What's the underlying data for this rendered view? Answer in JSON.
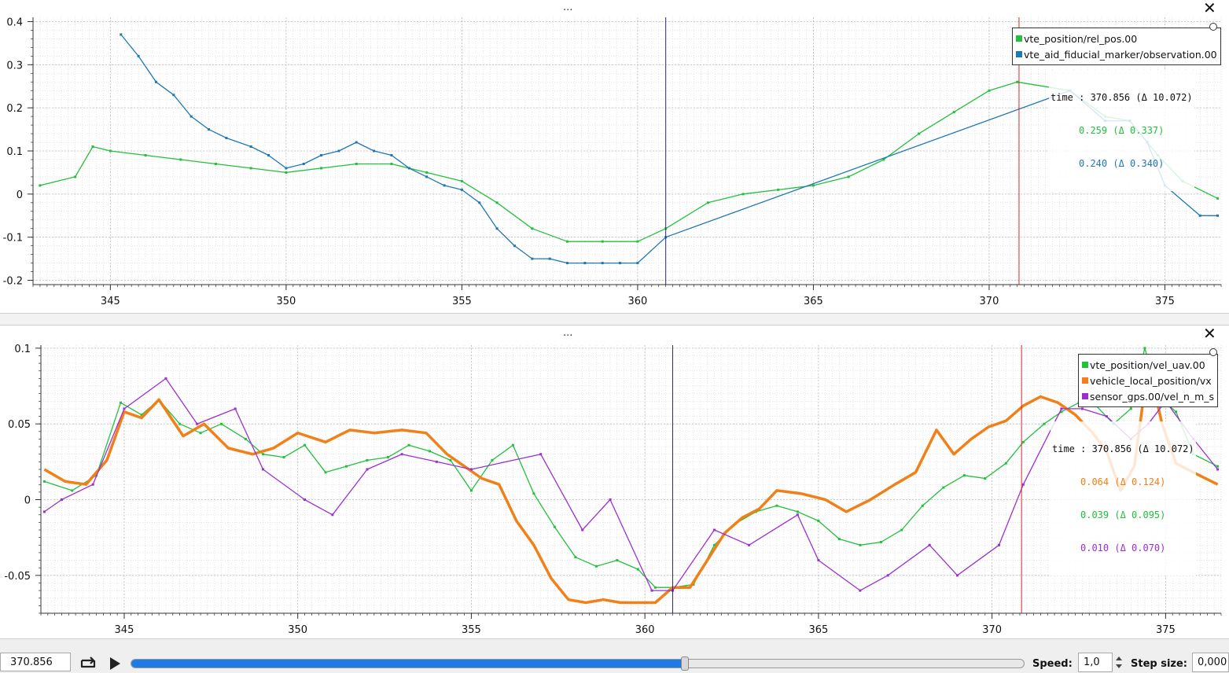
{
  "panels": [
    {
      "menu_dots": "...",
      "close_icon": "close-icon",
      "y_ticks": [
        "0.4",
        "0.3",
        "0.2",
        "0.1",
        "0",
        "-0.1",
        "-0.2"
      ],
      "x_ticks": [
        "345",
        "350",
        "355",
        "360",
        "365",
        "370",
        "375"
      ],
      "legend": [
        {
          "label": "vte_position/rel_pos.00",
          "color": "#22c03c"
        },
        {
          "label": "vte_aid_fiducial_marker/observation.00",
          "color": "#1f77b4"
        }
      ],
      "tooltip": {
        "time": "time : 370.856 (Δ 10.072)",
        "values": [
          {
            "text": "0.259 (Δ 0.337)",
            "color": "#22c03c"
          },
          {
            "text": "0.240 (Δ 0.340)",
            "color": "#1f77b4"
          }
        ]
      }
    },
    {
      "menu_dots": "...",
      "close_icon": "close-icon",
      "y_ticks": [
        "0.1",
        "0.05",
        "0",
        "-0.05"
      ],
      "x_ticks": [
        "345",
        "350",
        "355",
        "360",
        "365",
        "370",
        "375"
      ],
      "legend": [
        {
          "label": "vte_position/vel_uav.00",
          "color": "#22c03c"
        },
        {
          "label": "vehicle_local_position/vx",
          "color": "#f28018"
        },
        {
          "label": "sensor_gps.00/vel_n_m_s",
          "color": "#9c2fd0"
        }
      ],
      "tooltip": {
        "time": "time : 370.856 (Δ 10.072)",
        "values": [
          {
            "text": "0.064 (Δ 0.124)",
            "color": "#f28018"
          },
          {
            "text": "0.039 (Δ 0.095)",
            "color": "#22c03c"
          },
          {
            "text": "0.010 (Δ 0.070)",
            "color": "#9c2fd0"
          }
        ]
      }
    }
  ],
  "controls": {
    "time_value": "370.856",
    "loop_icon": "loop-icon",
    "play_icon": "play-icon",
    "progress": 0.62,
    "speed_label": "Speed:",
    "speed_value": "1,0",
    "step_label": "Step size:",
    "step_value": "0,000"
  },
  "chart_data": [
    {
      "type": "line",
      "xlim": [
        342.8,
        376.6
      ],
      "ylim": [
        -0.21,
        0.41
      ],
      "grid": true,
      "legend_position": "top-right",
      "cursor_x": [
        360.8,
        370.85
      ],
      "series": [
        {
          "name": "vte_position/rel_pos.00",
          "color": "#22c03c",
          "x": [
            343.0,
            344.0,
            344.5,
            345.0,
            346.0,
            347.0,
            348.0,
            349.0,
            350.0,
            351.0,
            352.0,
            353.0,
            354.0,
            355.0,
            356.0,
            357.0,
            358.0,
            359.0,
            360.0,
            360.8,
            362.0,
            363.0,
            364.0,
            365.0,
            366.0,
            367.0,
            368.0,
            369.0,
            370.0,
            370.8,
            372.3,
            373.3,
            374.0,
            374.8,
            375.5,
            376.5
          ],
          "y": [
            0.02,
            0.04,
            0.11,
            0.1,
            0.09,
            0.08,
            0.07,
            0.06,
            0.05,
            0.06,
            0.07,
            0.07,
            0.05,
            0.03,
            -0.02,
            -0.08,
            -0.11,
            -0.11,
            -0.11,
            -0.08,
            -0.02,
            0.0,
            0.01,
            0.02,
            0.04,
            0.08,
            0.14,
            0.19,
            0.24,
            0.26,
            0.24,
            0.18,
            0.17,
            0.09,
            0.03,
            -0.01
          ]
        },
        {
          "name": "vte_aid_fiducial_marker/observation.00",
          "color": "#1f77b4",
          "x": [
            345.3,
            345.8,
            346.3,
            346.8,
            347.3,
            347.8,
            348.3,
            349.0,
            349.5,
            350.0,
            350.5,
            351.0,
            351.5,
            352.0,
            352.5,
            353.0,
            353.5,
            354.0,
            354.5,
            355.0,
            355.5,
            356.0,
            356.5,
            357.0,
            357.5,
            358.0,
            358.5,
            359.0,
            359.5,
            360.0,
            360.8,
            372.3,
            373.3,
            374.0,
            374.5,
            375.0,
            376.0,
            376.5
          ],
          "y": [
            0.37,
            0.32,
            0.26,
            0.23,
            0.18,
            0.15,
            0.13,
            0.11,
            0.09,
            0.06,
            0.07,
            0.09,
            0.1,
            0.12,
            0.1,
            0.09,
            0.06,
            0.04,
            0.02,
            0.01,
            -0.02,
            -0.08,
            -0.12,
            -0.15,
            -0.15,
            -0.16,
            -0.16,
            -0.16,
            -0.16,
            -0.16,
            -0.1,
            0.24,
            0.17,
            0.17,
            0.12,
            0.02,
            -0.05,
            -0.05
          ]
        }
      ]
    },
    {
      "type": "line",
      "xlim": [
        342.6,
        376.6
      ],
      "ylim": [
        -0.075,
        0.102
      ],
      "grid": true,
      "legend_position": "top-right",
      "cursor_x": [
        360.8,
        370.85
      ],
      "series": [
        {
          "name": "vte_position/vel_uav.00",
          "color": "#22c03c",
          "x": [
            342.7,
            343.5,
            344.2,
            344.9,
            345.5,
            346.0,
            346.6,
            347.2,
            347.8,
            348.5,
            349.0,
            349.6,
            350.2,
            350.8,
            351.4,
            352.0,
            352.6,
            353.2,
            353.8,
            354.4,
            355.0,
            355.6,
            356.2,
            356.8,
            357.4,
            358.0,
            358.6,
            359.2,
            359.8,
            360.3,
            360.8,
            361.4,
            362.0,
            362.6,
            363.2,
            363.8,
            364.4,
            365.0,
            365.6,
            366.2,
            366.8,
            367.4,
            368.0,
            368.6,
            369.2,
            369.8,
            370.4,
            370.9,
            371.5,
            372.0,
            372.5,
            373.0,
            373.5,
            374.0,
            374.4,
            374.8,
            375.3,
            375.8,
            376.5
          ],
          "y": [
            0.012,
            0.006,
            0.016,
            0.064,
            0.056,
            0.066,
            0.05,
            0.044,
            0.05,
            0.04,
            0.03,
            0.028,
            0.036,
            0.018,
            0.022,
            0.026,
            0.028,
            0.036,
            0.032,
            0.026,
            0.006,
            0.026,
            0.036,
            0.004,
            -0.018,
            -0.038,
            -0.044,
            -0.04,
            -0.046,
            -0.058,
            -0.058,
            -0.056,
            -0.03,
            -0.016,
            -0.008,
            -0.004,
            -0.008,
            -0.014,
            -0.026,
            -0.03,
            -0.028,
            -0.02,
            -0.004,
            0.008,
            0.016,
            0.014,
            0.024,
            0.038,
            0.05,
            0.058,
            0.064,
            0.062,
            0.05,
            0.06,
            0.1,
            0.068,
            0.058,
            0.03,
            0.022
          ]
        },
        {
          "name": "vehicle_local_position/vx",
          "color": "#f28018",
          "x": [
            342.7,
            343.3,
            343.9,
            344.5,
            345.0,
            345.5,
            346.0,
            346.7,
            347.3,
            348.0,
            348.7,
            349.3,
            350.0,
            350.8,
            351.5,
            352.2,
            353.0,
            353.7,
            354.3,
            354.8,
            355.3,
            355.8,
            356.3,
            356.8,
            357.3,
            357.8,
            358.3,
            358.8,
            359.3,
            359.8,
            360.3,
            360.8,
            361.3,
            361.8,
            362.3,
            362.8,
            363.3,
            363.8,
            364.5,
            365.2,
            365.8,
            366.5,
            367.2,
            367.8,
            368.4,
            368.9,
            369.4,
            369.9,
            370.4,
            370.9,
            371.4,
            371.9,
            372.4,
            372.9,
            373.3,
            373.7,
            374.1,
            374.5,
            374.9,
            375.3,
            375.8,
            376.5
          ],
          "y": [
            0.02,
            0.012,
            0.01,
            0.026,
            0.058,
            0.054,
            0.066,
            0.042,
            0.05,
            0.034,
            0.03,
            0.034,
            0.044,
            0.038,
            0.046,
            0.044,
            0.046,
            0.044,
            0.03,
            0.022,
            0.014,
            0.01,
            -0.014,
            -0.03,
            -0.052,
            -0.066,
            -0.068,
            -0.066,
            -0.068,
            -0.068,
            -0.068,
            -0.058,
            -0.058,
            -0.04,
            -0.022,
            -0.012,
            -0.006,
            0.006,
            0.004,
            0.0,
            -0.008,
            0.0,
            0.01,
            0.018,
            0.046,
            0.03,
            0.04,
            0.048,
            0.052,
            0.062,
            0.068,
            0.064,
            0.056,
            0.044,
            0.032,
            0.006,
            0.022,
            0.09,
            0.05,
            0.024,
            0.018,
            0.01
          ]
        },
        {
          "name": "sensor_gps.00/vel_n_m_s",
          "color": "#9c2fd0",
          "x": [
            342.7,
            343.2,
            344.1,
            345.0,
            346.2,
            347.1,
            348.2,
            349.0,
            350.2,
            351.0,
            352.0,
            353.0,
            354.0,
            355.0,
            357.0,
            358.2,
            359.0,
            360.2,
            360.8,
            362.0,
            363.0,
            364.4,
            365.0,
            366.2,
            367.0,
            368.2,
            369.0,
            370.2,
            370.9,
            372.0,
            372.6,
            373.3,
            374.0,
            374.5,
            375.0,
            375.8,
            376.5
          ],
          "y": [
            -0.008,
            0.0,
            0.01,
            0.06,
            0.08,
            0.05,
            0.06,
            0.02,
            0.0,
            -0.01,
            0.02,
            0.03,
            0.025,
            0.02,
            0.03,
            -0.02,
            0.0,
            -0.06,
            -0.06,
            -0.02,
            -0.03,
            -0.01,
            -0.04,
            -0.06,
            -0.05,
            -0.03,
            -0.05,
            -0.03,
            0.01,
            0.06,
            0.06,
            0.055,
            0.04,
            0.05,
            0.065,
            0.04,
            0.02
          ]
        }
      ]
    }
  ]
}
